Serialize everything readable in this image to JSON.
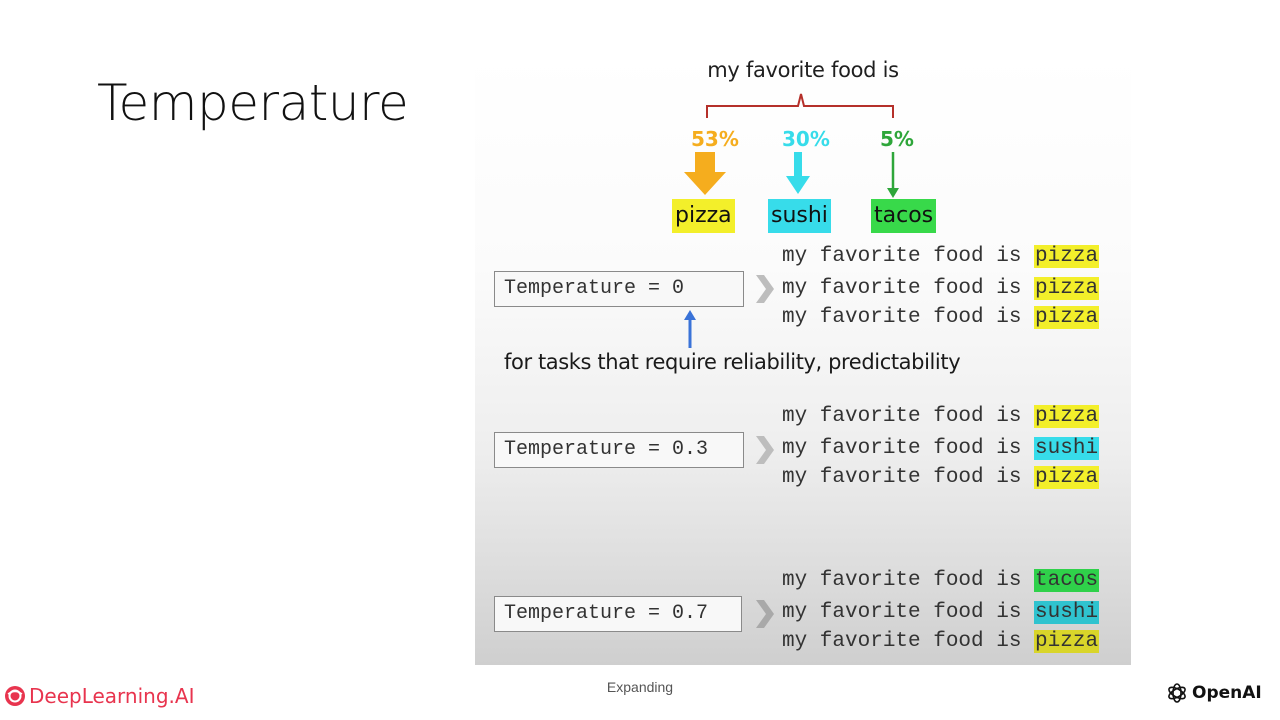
{
  "slide": {
    "title": "Temperature",
    "footer": "Expanding"
  },
  "colors": {
    "yellow": "#f3ef2a",
    "cyan": "#37dcea",
    "teal": "#2fc3cf",
    "green": "#38d94a",
    "orange": "#f5ad1e",
    "bracket": "#b5302a",
    "pointer": "#3a73d8"
  },
  "diagram": {
    "prompt": "my favorite food is",
    "options": [
      {
        "percent": "53%",
        "word": "pizza"
      },
      {
        "percent": "30%",
        "word": "sushi"
      },
      {
        "percent": "5%",
        "word": "tacos"
      }
    ],
    "note": "for tasks that require reliability, predictability",
    "temperatures": [
      {
        "label": "Temperature = 0",
        "outputs": [
          {
            "prefix": "my favorite food is ",
            "word": "pizza"
          },
          {
            "prefix": "my favorite food is ",
            "word": "pizza"
          },
          {
            "prefix": "my favorite food is ",
            "word": "pizza"
          }
        ]
      },
      {
        "label": "Temperature = 0.3",
        "outputs": [
          {
            "prefix": "my favorite food is ",
            "word": "pizza"
          },
          {
            "prefix": "my favorite food is ",
            "word": "sushi"
          },
          {
            "prefix": "my favorite food is ",
            "word": "pizza"
          }
        ]
      },
      {
        "label": "Temperature = 0.7",
        "outputs": [
          {
            "prefix": "my favorite food is ",
            "word": "tacos"
          },
          {
            "prefix": "my favorite food is ",
            "word": "sushi"
          },
          {
            "prefix": "my favorite food is ",
            "word": "pizza"
          }
        ]
      }
    ]
  },
  "branding": {
    "left_logo": "DeepLearning.AI",
    "right_logo": "OpenAI"
  }
}
